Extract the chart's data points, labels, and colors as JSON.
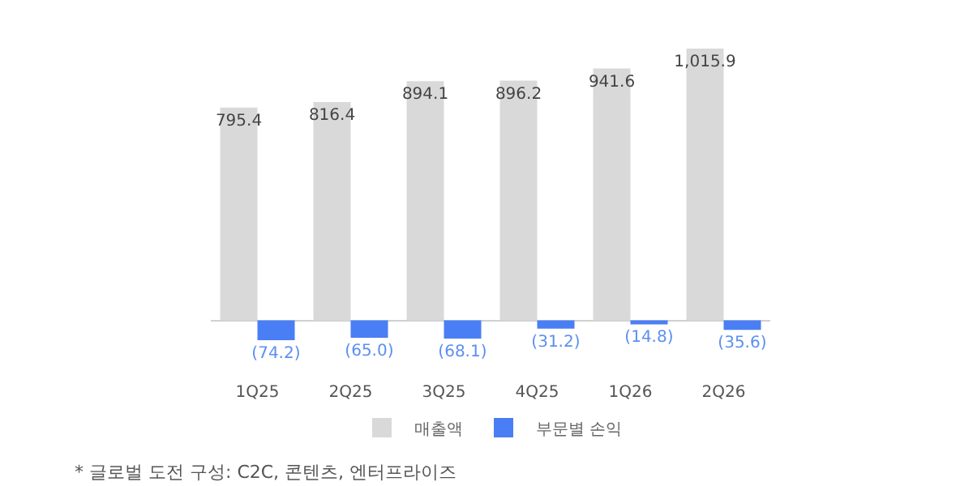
{
  "chart_data": {
    "type": "bar",
    "categories": [
      "1Q25",
      "2Q25",
      "3Q25",
      "4Q25",
      "1Q26",
      "2Q26"
    ],
    "series": [
      {
        "name": "매출액",
        "color": "#d9d9d9",
        "values": [
          795.4,
          816.4,
          894.1,
          896.2,
          941.6,
          1015.9
        ],
        "value_labels": [
          "795.4",
          "816.4",
          "894.1",
          "896.2",
          "941.6",
          "1,015.9"
        ]
      },
      {
        "name": "부문별 손익",
        "color": "#4a7ef5",
        "values": [
          -74.2,
          -65.0,
          -68.1,
          -31.2,
          -14.8,
          -35.6
        ],
        "value_labels": [
          "(74.2)",
          "(65.0)",
          "(68.1)",
          "(31.2)",
          "(14.8)",
          "(35.6)"
        ]
      }
    ],
    "legend": "bottom",
    "grid": false,
    "annotations": [
      "* 글로벌 도전 구성: C2C, 콘텐츠, 엔터프라이즈"
    ]
  }
}
